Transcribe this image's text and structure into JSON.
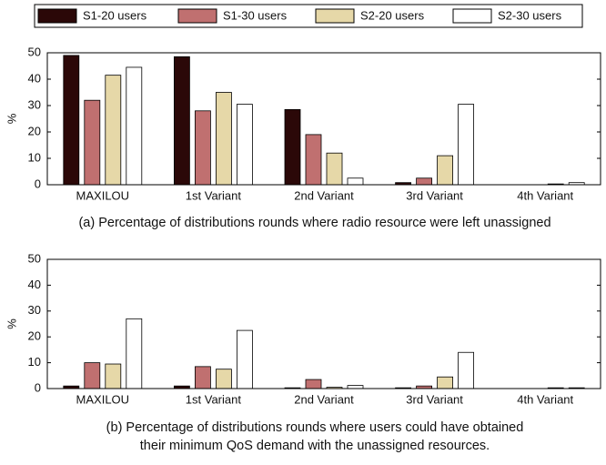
{
  "chart_data": [
    {
      "type": "bar",
      "ylabel": "%",
      "categories": [
        "MAXILOU",
        "1st Variant",
        "2nd Variant",
        "3rd Variant",
        "4th Variant"
      ],
      "series": [
        {
          "name": "S1-20 users",
          "color": "#2b0808",
          "values": [
            49,
            48.5,
            28.5,
            0.8,
            0
          ]
        },
        {
          "name": "S1-30 users",
          "color": "#c07070",
          "values": [
            32,
            28,
            19,
            2.5,
            0
          ]
        },
        {
          "name": "S2-20 users",
          "color": "#e6d8a8",
          "values": [
            41.5,
            35,
            12,
            11,
            0.3
          ]
        },
        {
          "name": "S2-30 users",
          "color": "#ffffff",
          "values": [
            44.5,
            30.5,
            2.5,
            30.5,
            0.8
          ]
        }
      ],
      "ylim": [
        0,
        50
      ],
      "yticks": [
        0,
        10,
        20,
        30,
        40,
        50
      ],
      "caption": [
        "(a) Percentage of distributions rounds where radio resource were left unassigned"
      ]
    },
    {
      "type": "bar",
      "ylabel": "%",
      "categories": [
        "MAXILOU",
        "1st Variant",
        "2nd Variant",
        "3rd Variant",
        "4th Variant"
      ],
      "series": [
        {
          "name": "S1-20 users",
          "color": "#2b0808",
          "values": [
            1,
            1,
            0.3,
            0.3,
            0
          ]
        },
        {
          "name": "S1-30 users",
          "color": "#c07070",
          "values": [
            10,
            8.5,
            3.5,
            1,
            0
          ]
        },
        {
          "name": "S2-20 users",
          "color": "#e6d8a8",
          "values": [
            9.5,
            7.5,
            0.5,
            4.5,
            0.3
          ]
        },
        {
          "name": "S2-30 users",
          "color": "#ffffff",
          "values": [
            27,
            22.5,
            1.2,
            14,
            0.3
          ]
        }
      ],
      "ylim": [
        0,
        50
      ],
      "yticks": [
        0,
        10,
        20,
        30,
        40,
        50
      ],
      "caption": [
        "(b) Percentage of distributions rounds where users could have obtained",
        "their minimum QoS demand with the unassigned resources."
      ]
    }
  ]
}
